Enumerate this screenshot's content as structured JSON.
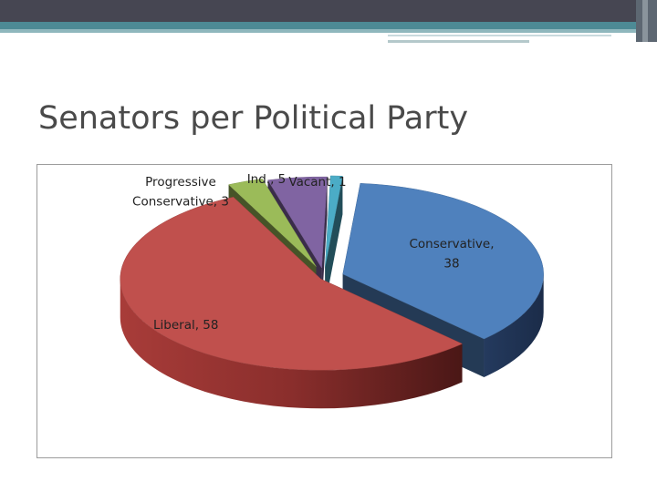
{
  "slide": {
    "title": "Senators per Political Party"
  },
  "chart_data": {
    "type": "pie",
    "style": "3d-exploded",
    "categories": [
      "Conservative",
      "Liberal",
      "Progressive Conservative",
      "Ind.",
      "Vacant"
    ],
    "values": [
      38,
      58,
      3,
      5,
      1
    ],
    "colors": [
      "#4f81bd",
      "#c0504d",
      "#9bbb59",
      "#8064a2",
      "#4bacc6"
    ],
    "data_labels": [
      [
        "Conservative,",
        "38"
      ],
      [
        "Liberal, 58"
      ],
      [
        "Progressive",
        "Conservative, 3"
      ],
      [
        "Ind., 5"
      ],
      [
        "Vacant, 1"
      ]
    ],
    "legend": "none"
  }
}
